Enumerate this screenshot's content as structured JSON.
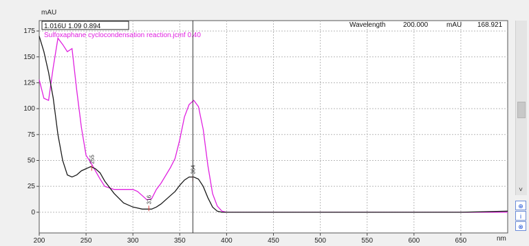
{
  "chart_data": {
    "type": "line",
    "ylabel": "mAU",
    "xlabel": "nm",
    "xlim": [
      200,
      700
    ],
    "ylim": [
      -20,
      185
    ],
    "x_ticks": [
      200,
      250,
      300,
      350,
      400,
      450,
      500,
      550,
      600,
      650
    ],
    "x_tick_labels": [
      "200",
      "250",
      "300",
      "350",
      "400",
      "450",
      "500",
      "550",
      "600",
      "650"
    ],
    "y_ticks": [
      0,
      25,
      50,
      75,
      100,
      125,
      150,
      175
    ],
    "y_tick_labels": [
      "0",
      "25",
      "50",
      "75",
      "100",
      "125",
      "150",
      "175"
    ],
    "grid": true,
    "cursor_x": 364,
    "series": [
      {
        "name": "Sulfoxaphane cyclocondensation reaction.jcmf 0.40",
        "color": "#e020e0",
        "x": [
          200,
          205,
          210,
          215,
          220,
          225,
          230,
          235,
          240,
          245,
          250,
          255,
          260,
          265,
          270,
          280,
          290,
          300,
          305,
          310,
          315,
          320,
          325,
          330,
          340,
          345,
          350,
          355,
          360,
          365,
          370,
          375,
          380,
          385,
          390,
          395,
          400,
          420,
          450,
          500,
          550,
          600,
          650,
          700
        ],
        "y": [
          128,
          110,
          108,
          140,
          168,
          162,
          155,
          158,
          118,
          82,
          55,
          48,
          40,
          32,
          25,
          22,
          22,
          22,
          20,
          16,
          12,
          13,
          22,
          28,
          43,
          52,
          70,
          92,
          104,
          108,
          102,
          80,
          45,
          18,
          6,
          1,
          0,
          0,
          0,
          0,
          0,
          0,
          0,
          0
        ]
      },
      {
        "name": "",
        "color": "#1a1a1a",
        "x": [
          200,
          205,
          210,
          215,
          220,
          225,
          230,
          235,
          240,
          245,
          250,
          255,
          260,
          265,
          270,
          280,
          290,
          300,
          305,
          310,
          315,
          320,
          325,
          330,
          340,
          345,
          350,
          355,
          360,
          365,
          370,
          375,
          380,
          385,
          390,
          395,
          400,
          420,
          450,
          500,
          550,
          600,
          650,
          700
        ],
        "y": [
          170,
          155,
          135,
          110,
          75,
          50,
          36,
          34,
          36,
          40,
          42,
          44,
          42,
          38,
          30,
          18,
          9,
          5,
          4,
          3,
          3,
          3,
          5,
          8,
          16,
          20,
          26,
          31,
          34,
          34,
          32,
          25,
          14,
          5,
          1,
          0,
          0,
          0,
          0,
          0,
          0,
          0,
          0,
          1
        ]
      }
    ],
    "peaks": [
      {
        "x": 256,
        "y": 44,
        "label": "255"
      },
      {
        "x": 317,
        "y": 5,
        "label": "316"
      },
      {
        "x": 364,
        "y": 34,
        "label": "364"
      }
    ],
    "readouts": {
      "top_left": "1.016U 1.09 0.894",
      "wavelength_label": "Wavelength",
      "wavelength_value": "200.000",
      "mau_label": "mAU",
      "mau_value": "168.921"
    }
  },
  "scrollbar": {
    "down_arrow": "˅"
  },
  "side_tools": [
    {
      "icon": "zoom-icon",
      "glyph": "⊕"
    },
    {
      "icon": "info-icon",
      "glyph": "i"
    },
    {
      "icon": "settings-icon",
      "glyph": "⊗"
    }
  ]
}
